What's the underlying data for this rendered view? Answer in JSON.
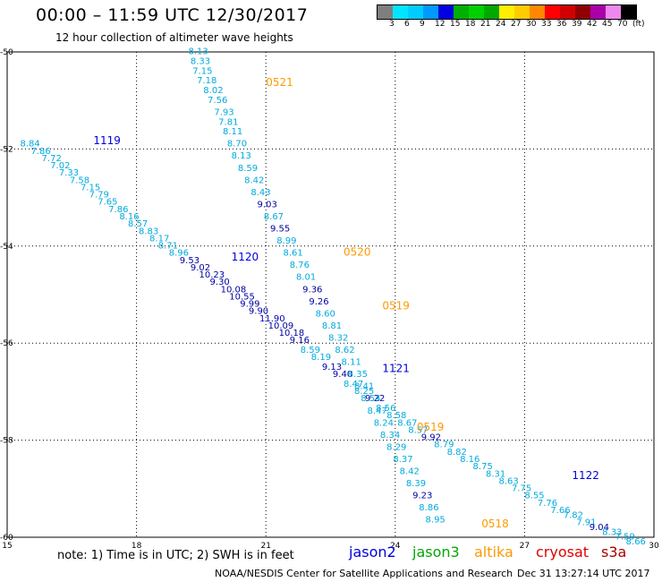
{
  "header": {
    "title": "00:00 – 11:59 UTC 12/30/2017",
    "subtitle": "12 hour collection of altimeter wave heights"
  },
  "scale": {
    "colors": [
      "#7f7f7f",
      "#00e5ff",
      "#00ccff",
      "#0099ff",
      "#0000e0",
      "#00b000",
      "#00d000",
      "#00a800",
      "#ffee00",
      "#ffcc00",
      "#ff8800",
      "#ff0000",
      "#d00000",
      "#900000",
      "#aa00aa",
      "#ee88ee",
      "#000000"
    ],
    "labels": [
      "3",
      "6",
      "9",
      "12",
      "15",
      "18",
      "21",
      "24",
      "27",
      "30",
      "33",
      "36",
      "39",
      "42",
      "45",
      "70",
      "(ft)"
    ]
  },
  "axes": {
    "x_ticks": [
      "15",
      "18",
      "21",
      "24",
      "27",
      "30"
    ],
    "y_ticks": [
      "-50",
      "-52",
      "-54",
      "-56",
      "-58",
      "-60"
    ]
  },
  "passes": [
    {
      "label": "1119",
      "sat": "jason2",
      "lon": 17.0,
      "lat": -51.9
    },
    {
      "label": "1120",
      "sat": "jason2",
      "lon": 20.2,
      "lat": -54.3
    },
    {
      "label": "1121",
      "sat": "jason2",
      "lon": 23.7,
      "lat": -56.6
    },
    {
      "label": "1122",
      "sat": "jason2",
      "lon": 28.1,
      "lat": -58.8
    },
    {
      "label": "0521",
      "sat": "altika",
      "lon": 21.0,
      "lat": -50.7
    },
    {
      "label": "0520",
      "sat": "altika",
      "lon": 22.8,
      "lat": -54.2
    },
    {
      "label": "0519",
      "sat": "altika",
      "lon": 23.7,
      "lat": -55.3
    },
    {
      "label": "0519",
      "sat": "altika",
      "lon": 24.5,
      "lat": -57.8
    },
    {
      "label": "0518",
      "sat": "altika",
      "lon": 26.0,
      "lat": -59.8
    }
  ],
  "observations": [
    {
      "lon": 15.3,
      "lat": -51.95,
      "swh": "8.84"
    },
    {
      "lon": 15.55,
      "lat": -52.1,
      "swh": "7.86"
    },
    {
      "lon": 15.8,
      "lat": -52.25,
      "swh": "7.72"
    },
    {
      "lon": 16.0,
      "lat": -52.4,
      "swh": "7.02"
    },
    {
      "lon": 16.2,
      "lat": -52.55,
      "swh": "7.33"
    },
    {
      "lon": 16.45,
      "lat": -52.7,
      "swh": "7.58"
    },
    {
      "lon": 16.7,
      "lat": -52.85,
      "swh": "7.15"
    },
    {
      "lon": 16.9,
      "lat": -53.0,
      "swh": "7.79"
    },
    {
      "lon": 17.1,
      "lat": -53.15,
      "swh": "7.65"
    },
    {
      "lon": 17.35,
      "lat": -53.3,
      "swh": "7.86"
    },
    {
      "lon": 17.6,
      "lat": -53.45,
      "swh": "8.16"
    },
    {
      "lon": 17.8,
      "lat": -53.6,
      "swh": "8.57"
    },
    {
      "lon": 18.05,
      "lat": -53.75,
      "swh": "8.83"
    },
    {
      "lon": 18.3,
      "lat": -53.9,
      "swh": "8.17"
    },
    {
      "lon": 18.5,
      "lat": -54.05,
      "swh": "8.71"
    },
    {
      "lon": 18.75,
      "lat": -54.2,
      "swh": "8.96"
    },
    {
      "lon": 19.0,
      "lat": -54.35,
      "swh": "9.53"
    },
    {
      "lon": 19.25,
      "lat": -54.5,
      "swh": "9.02"
    },
    {
      "lon": 19.45,
      "lat": -54.65,
      "swh": "10.23"
    },
    {
      "lon": 19.7,
      "lat": -54.8,
      "swh": "9.30"
    },
    {
      "lon": 19.95,
      "lat": -54.95,
      "swh": "10.08"
    },
    {
      "lon": 20.15,
      "lat": -55.1,
      "swh": "10.55"
    },
    {
      "lon": 20.4,
      "lat": -55.25,
      "swh": "9.99"
    },
    {
      "lon": 20.6,
      "lat": -55.4,
      "swh": "9.90"
    },
    {
      "lon": 20.85,
      "lat": -55.55,
      "swh": "11.90"
    },
    {
      "lon": 21.05,
      "lat": -55.7,
      "swh": "10.09"
    },
    {
      "lon": 21.3,
      "lat": -55.85,
      "swh": "10.18"
    },
    {
      "lon": 21.55,
      "lat": -56.0,
      "swh": "9.16"
    },
    {
      "lon": 21.8,
      "lat": -56.2,
      "swh": "8.59"
    },
    {
      "lon": 22.05,
      "lat": -56.35,
      "swh": "8.19"
    },
    {
      "lon": 22.3,
      "lat": -56.55,
      "swh": "9.13"
    },
    {
      "lon": 22.55,
      "lat": -56.7,
      "swh": "9.40"
    },
    {
      "lon": 22.8,
      "lat": -56.9,
      "swh": "8.47"
    },
    {
      "lon": 23.05,
      "lat": -57.05,
      "swh": "8.25"
    },
    {
      "lon": 23.3,
      "lat": -57.2,
      "swh": "9.22"
    },
    {
      "lon": 23.55,
      "lat": -57.4,
      "swh": "8.56"
    },
    {
      "lon": 23.8,
      "lat": -57.55,
      "swh": "8.58"
    },
    {
      "lon": 24.05,
      "lat": -57.7,
      "swh": "8.67"
    },
    {
      "lon": 24.3,
      "lat": -57.85,
      "swh": "8.57"
    },
    {
      "lon": 24.6,
      "lat": -58.0,
      "swh": "9.92"
    },
    {
      "lon": 24.9,
      "lat": -58.15,
      "swh": "8.79"
    },
    {
      "lon": 25.2,
      "lat": -58.3,
      "swh": "8.82"
    },
    {
      "lon": 25.5,
      "lat": -58.45,
      "swh": "8.16"
    },
    {
      "lon": 25.8,
      "lat": -58.6,
      "swh": "8.75"
    },
    {
      "lon": 26.1,
      "lat": -58.75,
      "swh": "8.31"
    },
    {
      "lon": 26.4,
      "lat": -58.9,
      "swh": "8.63"
    },
    {
      "lon": 26.7,
      "lat": -59.05,
      "swh": "7.75"
    },
    {
      "lon": 27.0,
      "lat": -59.2,
      "swh": "8.55"
    },
    {
      "lon": 27.3,
      "lat": -59.35,
      "swh": "7.76"
    },
    {
      "lon": 27.6,
      "lat": -59.5,
      "swh": "7.66"
    },
    {
      "lon": 27.9,
      "lat": -59.6,
      "swh": "7.82"
    },
    {
      "lon": 28.2,
      "lat": -59.75,
      "swh": "7.91"
    },
    {
      "lon": 28.5,
      "lat": -59.85,
      "swh": "9.04"
    },
    {
      "lon": 28.8,
      "lat": -59.95,
      "swh": "8.33"
    },
    {
      "lon": 29.1,
      "lat": -60.05,
      "swh": "7.59"
    },
    {
      "lon": 29.35,
      "lat": -60.15,
      "swh": "8.66"
    },
    {
      "lon": 19.2,
      "lat": -50.05,
      "swh": "8.13"
    },
    {
      "lon": 19.25,
      "lat": -50.25,
      "swh": "8.33"
    },
    {
      "lon": 19.3,
      "lat": -50.45,
      "swh": "7.15"
    },
    {
      "lon": 19.4,
      "lat": -50.65,
      "swh": "7.18"
    },
    {
      "lon": 19.55,
      "lat": -50.85,
      "swh": "8.02"
    },
    {
      "lon": 19.65,
      "lat": -51.05,
      "swh": "7.56"
    },
    {
      "lon": 19.8,
      "lat": -51.3,
      "swh": "7.93"
    },
    {
      "lon": 19.9,
      "lat": -51.5,
      "swh": "7.81"
    },
    {
      "lon": 20.0,
      "lat": -51.7,
      "swh": "8.11"
    },
    {
      "lon": 20.1,
      "lat": -51.95,
      "swh": "8.70"
    },
    {
      "lon": 20.2,
      "lat": -52.2,
      "swh": "8.13"
    },
    {
      "lon": 20.35,
      "lat": -52.45,
      "swh": "8.59"
    },
    {
      "lon": 20.5,
      "lat": -52.7,
      "swh": "8.42"
    },
    {
      "lon": 20.65,
      "lat": -52.95,
      "swh": "8.43"
    },
    {
      "lon": 20.8,
      "lat": -53.2,
      "swh": "9.03"
    },
    {
      "lon": 20.95,
      "lat": -53.45,
      "swh": "8.67"
    },
    {
      "lon": 21.1,
      "lat": -53.7,
      "swh": "9.55"
    },
    {
      "lon": 21.25,
      "lat": -53.95,
      "swh": "8.99"
    },
    {
      "lon": 21.4,
      "lat": -54.2,
      "swh": "8.61"
    },
    {
      "lon": 21.55,
      "lat": -54.45,
      "swh": "8.76"
    },
    {
      "lon": 21.7,
      "lat": -54.7,
      "swh": "8.01"
    },
    {
      "lon": 21.85,
      "lat": -54.95,
      "swh": "9.36"
    },
    {
      "lon": 22.0,
      "lat": -55.2,
      "swh": "9.26"
    },
    {
      "lon": 22.15,
      "lat": -55.45,
      "swh": "8.60"
    },
    {
      "lon": 22.3,
      "lat": -55.7,
      "swh": "8.81"
    },
    {
      "lon": 22.45,
      "lat": -55.95,
      "swh": "8.32"
    },
    {
      "lon": 22.6,
      "lat": -56.2,
      "swh": "8.62"
    },
    {
      "lon": 22.75,
      "lat": -56.45,
      "swh": "8.11"
    },
    {
      "lon": 22.9,
      "lat": -56.7,
      "swh": "8.35"
    },
    {
      "lon": 23.05,
      "lat": -56.95,
      "swh": "8.41"
    },
    {
      "lon": 23.2,
      "lat": -57.2,
      "swh": "8.54"
    },
    {
      "lon": 23.35,
      "lat": -57.45,
      "swh": "8.47"
    },
    {
      "lon": 23.5,
      "lat": -57.7,
      "swh": "8.24"
    },
    {
      "lon": 23.65,
      "lat": -57.95,
      "swh": "8.34"
    },
    {
      "lon": 23.8,
      "lat": -58.2,
      "swh": "8.29"
    },
    {
      "lon": 23.95,
      "lat": -58.45,
      "swh": "8.37"
    },
    {
      "lon": 24.1,
      "lat": -58.7,
      "swh": "8.42"
    },
    {
      "lon": 24.25,
      "lat": -58.95,
      "swh": "8.39"
    },
    {
      "lon": 24.4,
      "lat": -59.2,
      "swh": "9.23"
    },
    {
      "lon": 24.55,
      "lat": -59.45,
      "swh": "8.86"
    },
    {
      "lon": 24.7,
      "lat": -59.7,
      "swh": "8.95"
    }
  ],
  "legend": {
    "note": "note: 1) Time is in UTC; 2) SWH is in feet",
    "sats": [
      {
        "name": "jason2",
        "color": "#0000e0"
      },
      {
        "name": "jason3",
        "color": "#00a800"
      },
      {
        "name": "altika",
        "color": "#ff9900"
      },
      {
        "name": "cryosat",
        "color": "#e00000"
      },
      {
        "name": "s3a",
        "color": "#aa0000"
      }
    ]
  },
  "footer": {
    "credit": "NOAA/NESDIS Center for Satellite Applications and Research",
    "timestamp": "Dec 31 13:27:14 UTC 2017"
  }
}
